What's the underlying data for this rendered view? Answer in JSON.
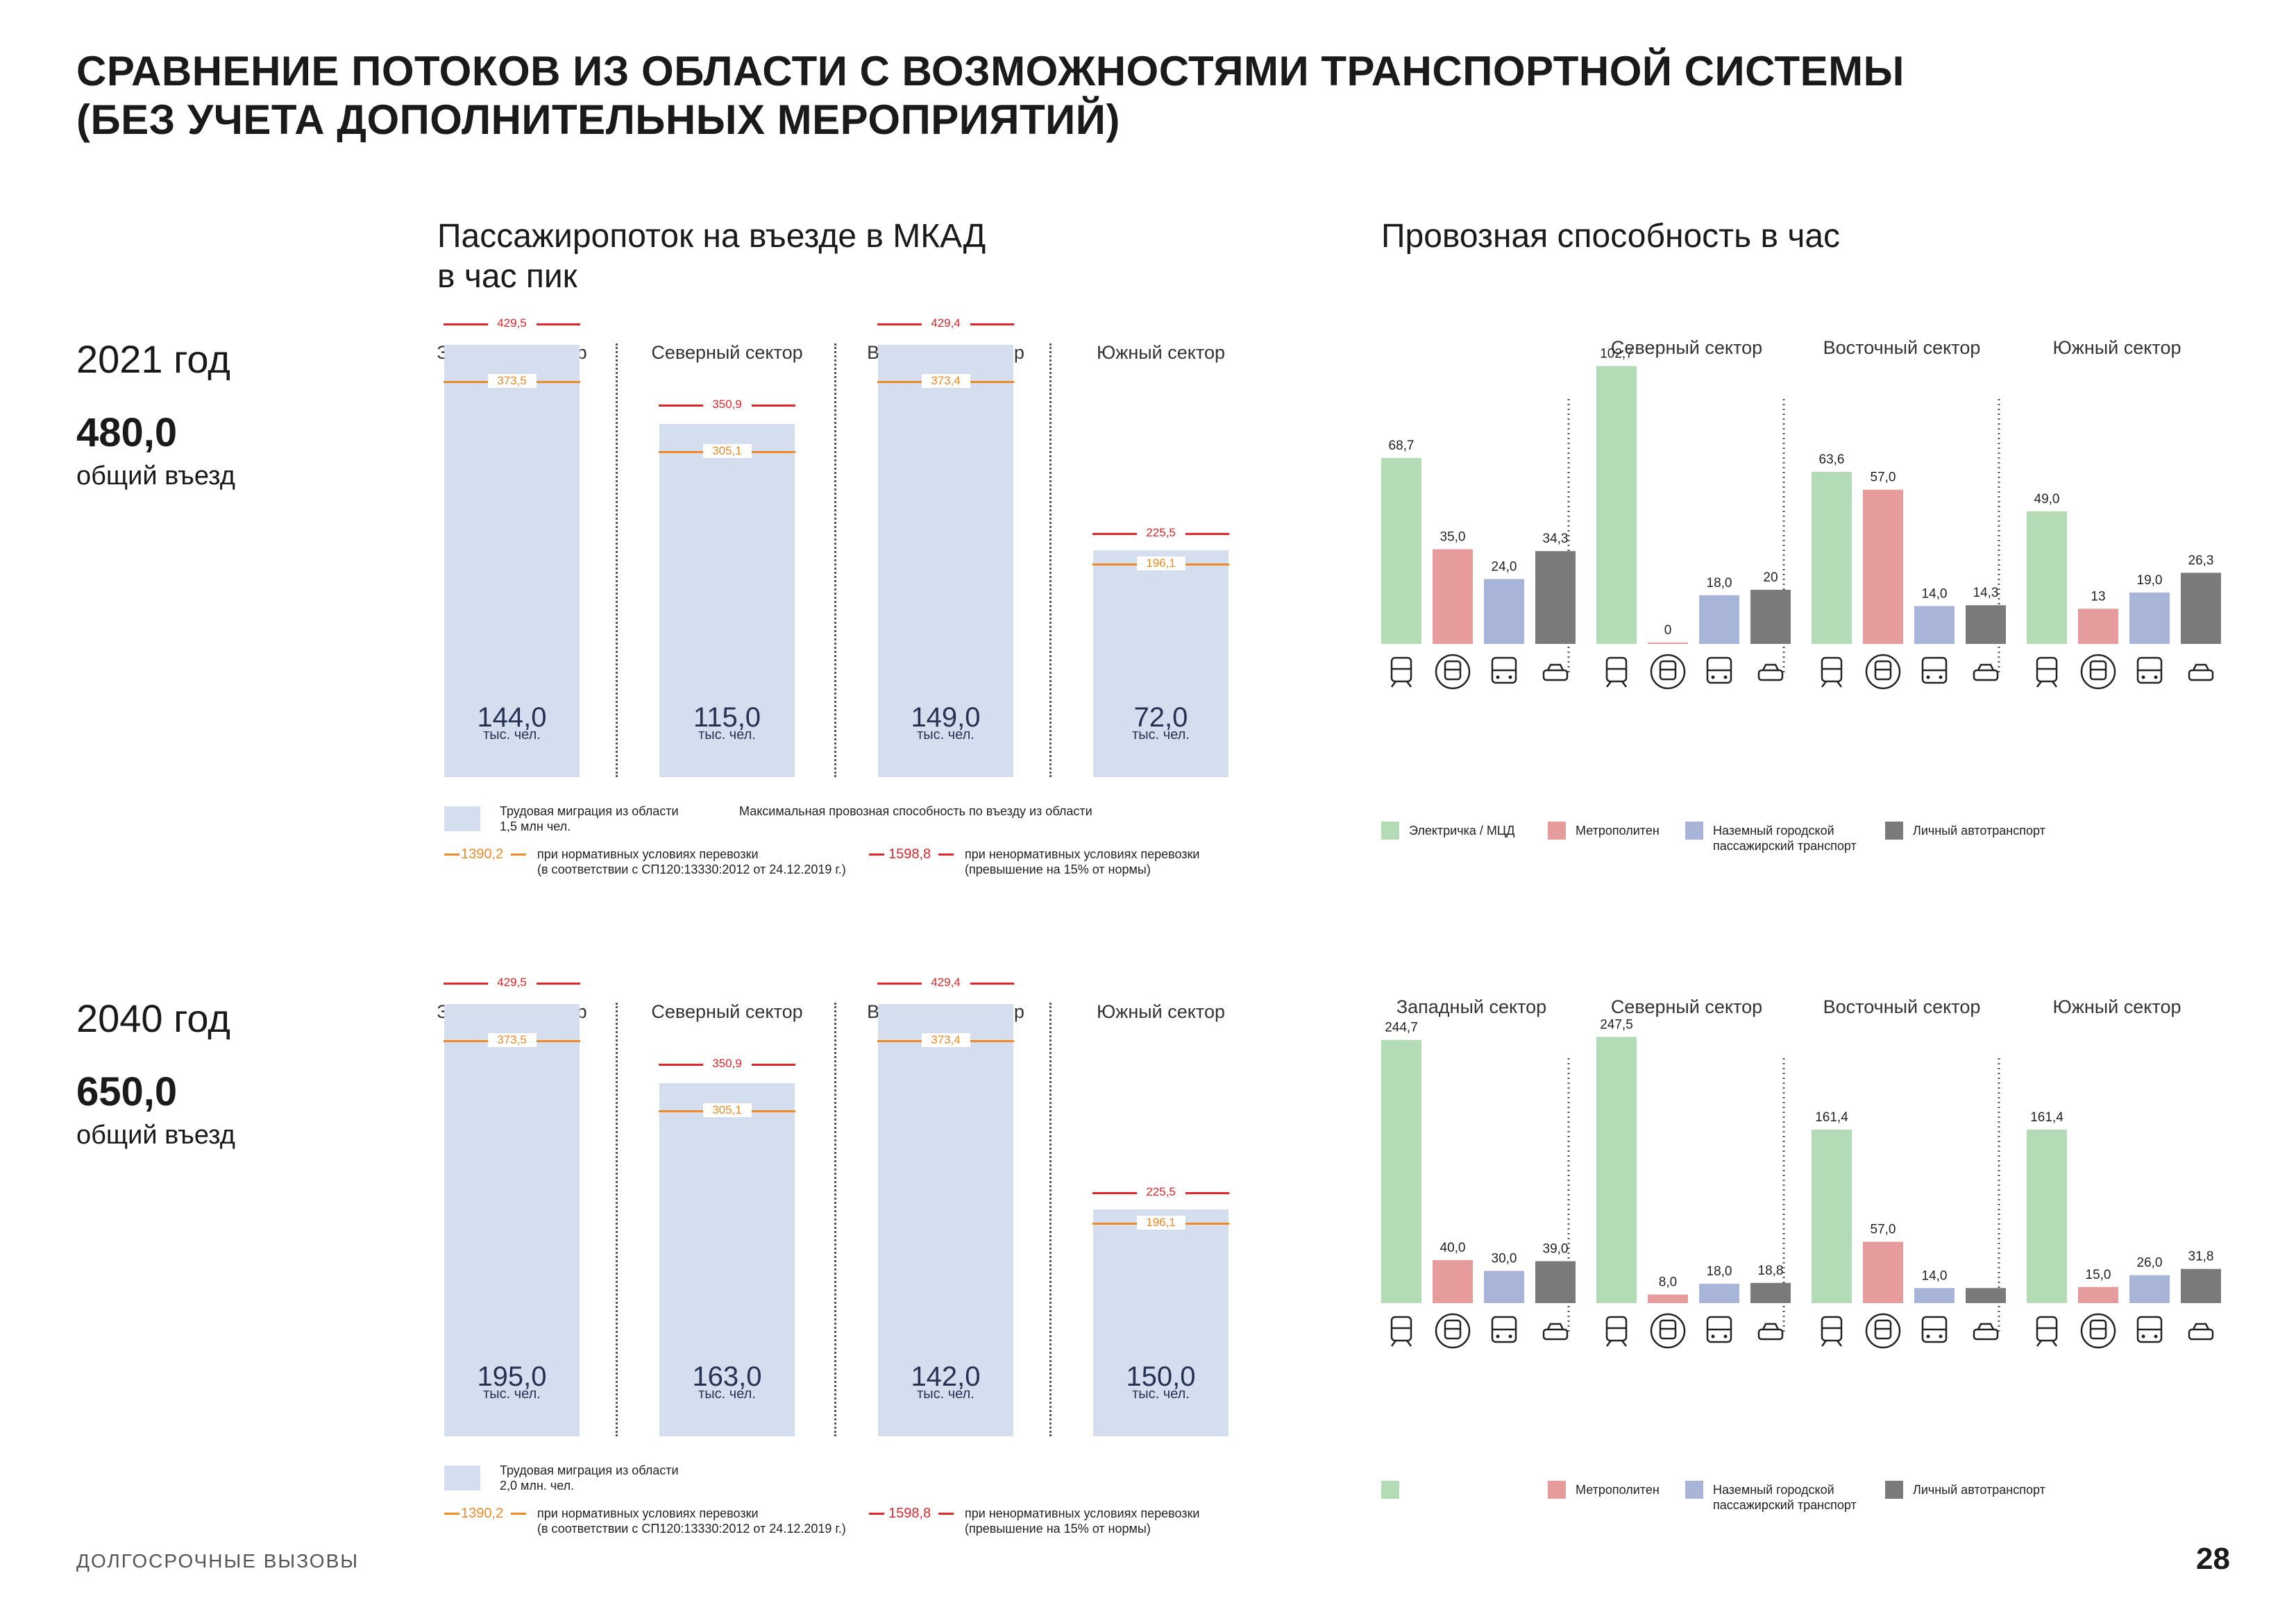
{
  "page": {
    "title_line1": "СРАВНЕНИЕ ПОТОКОВ ИЗ ОБЛАСТИ С ВОЗМОЖНОСТЯМИ ТРАНСПОРТНОЙ СИСТЕМЫ",
    "title_line2": "(БЕЗ УЧЕТА ДОПОЛНИТЕЛЬНЫХ МЕРОПРИЯТИЙ)",
    "footer": "ДОЛГОСРОЧНЫЕ ВЫЗОВЫ",
    "page_number": "28"
  },
  "left_header": {
    "line1": "Пассажиропоток на въезде в МКАД",
    "line2": "в час пик"
  },
  "right_header": "Провозная способность в час",
  "colors": {
    "bar_fill": "#d5deef",
    "red_line": "#e0262a",
    "orange_line": "#ef8a27",
    "elektrichka": "#b2dbb6",
    "metro": "#e69c9c",
    "nazemny": "#a8b5d9",
    "auto": "#7a7a7a"
  },
  "icons": [
    "train-icon",
    "metro-icon",
    "bus-icon",
    "car-icon"
  ],
  "rows": [
    {
      "year": "2021 год",
      "total": "480,0",
      "total_label": "общий въезд",
      "flow_sectors": [
        {
          "name": "Западный сектор",
          "value": "144,0",
          "unit": "тыс. чел.",
          "red": "429,5",
          "orange": "373,5"
        },
        {
          "name": "Северный сектор",
          "value": "115,0",
          "unit": "тыс. чел.",
          "red": "350,9",
          "orange": "305,1"
        },
        {
          "name": "Восточный сектор",
          "value": "149,0",
          "unit": "тыс. чел.",
          "red": "429,4",
          "orange": "373,4"
        },
        {
          "name": "Южный сектор",
          "value": "72,0",
          "unit": "тыс. чел.",
          "red": "225,5",
          "orange": "196,1"
        }
      ],
      "flow_legend": {
        "migration_line1": "Трудовая миграция из области",
        "migration_line2": "1,5 млн чел.",
        "max_capacity": "Максимальная провозная способность по въезду из области",
        "norm_value": "1390,2",
        "norm_line1": "при нормативных условиях перевозки",
        "norm_line2": "(в соответствии с СП120:13330:2012 от 24.12.2019 г.)",
        "over_value": "1598,8",
        "over_line1": "при ненормативных условиях перевозки",
        "over_line2": "(превышение на 15% от нормы)"
      },
      "capacity_sector_names": [
        "",
        "Северный сектор",
        "Восточный сектор",
        "Южный сектор"
      ],
      "capacity_legend": {
        "elektrichka": "Электричка / МЦД",
        "metro": "Метрополитен",
        "nazemny_line1": "Наземный городской",
        "nazemny_line2": "пассажирский транспорт",
        "auto": "Личный автотранспорт"
      }
    },
    {
      "year": "2040 год",
      "total": "650,0",
      "total_label": "общий въезд",
      "flow_sectors": [
        {
          "name": "Западный сектор",
          "value": "195,0",
          "unit": "тыс. чел.",
          "red": "429,5",
          "orange": "373,5"
        },
        {
          "name": "Северный сектор",
          "value": "163,0",
          "unit": "тыс. чел.",
          "red": "350,9",
          "orange": "305,1"
        },
        {
          "name": "Восточный сектор",
          "value": "142,0",
          "unit": "тыс. чел.",
          "red": "429,4",
          "orange": "373,4"
        },
        {
          "name": "Южный сектор",
          "value": "150,0",
          "unit": "тыс. чел.",
          "red": "225,5",
          "orange": "196,1"
        }
      ],
      "flow_legend": {
        "migration_line1": "Трудовая миграция из области",
        "migration_line2": "2,0 млн. чел.",
        "max_capacity": "",
        "norm_value": "1390,2",
        "norm_line1": "при нормативных условиях перевозки",
        "norm_line2": "(в соответствии с СП120:13330:2012 от 24.12.2019 г.)",
        "over_value": "1598,8",
        "over_line1": "при ненормативных условиях перевозки",
        "over_line2": "(превышение на 15% от нормы)"
      },
      "capacity_sector_names": [
        "Западный сектор",
        "Северный сектор",
        "Восточный сектор",
        "Южный сектор"
      ],
      "capacity_legend": {
        "elektrichka": "",
        "metro": "Метрополитен",
        "nazemny_line1": "Наземный городской",
        "nazemny_line2": "пассажирский транспорт",
        "auto": "Личный автотранспорт"
      }
    }
  ],
  "chart_data": [
    {
      "type": "bar",
      "title": "Пассажиропоток на въезде в МКАД в час пик",
      "year": "2021 год",
      "categories": [
        "Западный сектор",
        "Северный сектор",
        "Восточный сектор",
        "Южный сектор"
      ],
      "series": [
        {
          "name": "Трудовая миграция из области",
          "values": [
            144.0,
            115.0,
            149.0,
            72.0
          ]
        },
        {
          "name": "при ненормативных условиях перевозки",
          "values": [
            429.5,
            350.9,
            429.4,
            225.5
          ]
        },
        {
          "name": "при нормативных условиях перевозки",
          "values": [
            373.5,
            305.1,
            373.4,
            196.1
          ]
        }
      ]
    },
    {
      "type": "bar",
      "title": "Провозная способность в час",
      "year": "2021 год",
      "categories": [
        "",
        "Северный сектор",
        "Восточный сектор",
        "Южный сектор"
      ],
      "series": [
        {
          "name": "Электричка / МЦД",
          "values": [
            68.7,
            102.7,
            63.6,
            49.0
          ],
          "labels": [
            "68,7",
            "102,7",
            "63,6",
            "49,0"
          ]
        },
        {
          "name": "Метрополитен",
          "values": [
            35.0,
            0,
            57.0,
            13
          ],
          "labels": [
            "35,0",
            "0",
            "57,0",
            "13"
          ]
        },
        {
          "name": "Наземный городской пассажирский транспорт",
          "values": [
            24.0,
            18.0,
            14.0,
            19.0
          ],
          "labels": [
            "24,0",
            "18,0",
            "14,0",
            "19,0"
          ]
        },
        {
          "name": "Личный автотранспорт",
          "values": [
            34.3,
            20,
            14.3,
            26.3
          ],
          "labels": [
            "34,3",
            "20",
            "14,3",
            "26,3"
          ]
        }
      ]
    },
    {
      "type": "bar",
      "title": "Пассажиропоток на въезде в МКАД в час пик",
      "year": "2040 год",
      "categories": [
        "Западный сектор",
        "Северный сектор",
        "Восточный сектор",
        "Южный сектор"
      ],
      "series": [
        {
          "name": "Трудовая миграция из области",
          "values": [
            195.0,
            163.0,
            142.0,
            150.0
          ]
        },
        {
          "name": "при ненормативных условиях перевозки",
          "values": [
            429.5,
            350.9,
            429.4,
            225.5
          ]
        },
        {
          "name": "при нормативных условиях перевозки",
          "values": [
            373.5,
            305.1,
            373.4,
            196.1
          ]
        }
      ]
    },
    {
      "type": "bar",
      "title": "Провозная способность в час",
      "year": "2040 год",
      "categories": [
        "Западный сектор",
        "Северный сектор",
        "Восточный сектор",
        "Южный сектор"
      ],
      "series": [
        {
          "name": "",
          "values": [
            244.7,
            247.5,
            161.4,
            161.4
          ],
          "labels": [
            "244,7",
            "247,5",
            "161,4",
            "161,4"
          ]
        },
        {
          "name": "Метрополитен",
          "values": [
            40.0,
            8.0,
            57.0,
            15.0
          ],
          "labels": [
            "40,0",
            "8,0",
            "57,0",
            "15,0"
          ]
        },
        {
          "name": "Наземный городской пассажирский транспорт",
          "values": [
            30.0,
            18.0,
            14.0,
            26.0
          ],
          "labels": [
            "30,0",
            "18,0",
            "14,0",
            "26,0"
          ]
        },
        {
          "name": "Личный автотранспорт",
          "values": [
            39.0,
            18.8,
            14.0,
            31.8
          ],
          "labels": [
            "39,0",
            "18,8",
            "",
            "31,8"
          ]
        }
      ]
    }
  ]
}
